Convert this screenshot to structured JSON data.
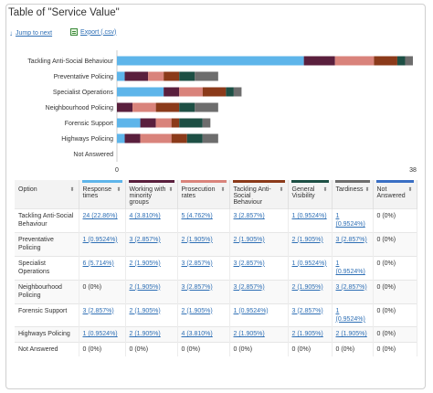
{
  "title": "Table of \"Service Value\"",
  "toolbar": {
    "jump_label": "Jump to next",
    "export_label": "Export (.csv)"
  },
  "colors": {
    "response_times": "#5eb5ea",
    "working_with_minority_groups": "#5a1f3d",
    "prosecution_rates": "#d9837b",
    "tackling_asb": "#8b3a1a",
    "general_visibility": "#1d4f44",
    "tardiness": "#6d6d6d",
    "not_answered": "#3a6fc4"
  },
  "chart_data": {
    "type": "bar",
    "orientation": "horizontal",
    "stacked": true,
    "categories": [
      "Tackling Anti-Social Behaviour",
      "Preventative Policing",
      "Specialist Operations",
      "Neighbourhood Policing",
      "Forensic Support",
      "Highways Policing",
      "Not Answered"
    ],
    "series": [
      {
        "name": "Response times",
        "values": [
          24,
          1,
          6,
          0,
          3,
          1,
          0
        ]
      },
      {
        "name": "Working with minority groups",
        "values": [
          4,
          3,
          2,
          2,
          2,
          2,
          0
        ]
      },
      {
        "name": "Prosecution rates",
        "values": [
          5,
          2,
          3,
          3,
          2,
          4,
          0
        ]
      },
      {
        "name": "Tackling Anti-Social Behaviour",
        "values": [
          3,
          2,
          3,
          3,
          1,
          2,
          0
        ]
      },
      {
        "name": "General Visibility",
        "values": [
          1,
          2,
          1,
          2,
          3,
          2,
          0
        ]
      },
      {
        "name": "Tardiness",
        "values": [
          1,
          3,
          1,
          3,
          1,
          2,
          0
        ]
      },
      {
        "name": "Not Answered",
        "values": [
          0,
          0,
          0,
          0,
          0,
          0,
          0
        ]
      }
    ],
    "xlim": [
      0,
      38
    ],
    "x_ticks": [
      "0",
      "38"
    ]
  },
  "table": {
    "option_header": "Option",
    "columns": [
      "Response times",
      "Working with minority groups",
      "Prosecution rates",
      "Tackling Anti-Social Behaviour",
      "General Visibility",
      "Tardiness",
      "Not Answered"
    ],
    "rows": [
      {
        "option": "Tackling Anti-Social Behaviour",
        "cells": [
          "24 (22.86%)",
          "4 (3.810%)",
          "5 (4.762%)",
          "3 (2.857%)",
          "1 (0.9524%)",
          "1 (0.9524%)",
          "0 (0%)"
        ]
      },
      {
        "option": "Preventative Policing",
        "cells": [
          "1 (0.9524%)",
          "3 (2.857%)",
          "2 (1.905%)",
          "2 (1.905%)",
          "2 (1.905%)",
          "3 (2.857%)",
          "0 (0%)"
        ]
      },
      {
        "option": "Specialist Operations",
        "cells": [
          "6 (5.714%)",
          "2 (1.905%)",
          "3 (2.857%)",
          "3 (2.857%)",
          "1 (0.9524%)",
          "1 (0.9524%)",
          "0 (0%)"
        ]
      },
      {
        "option": "Neighbourhood Policing",
        "cells": [
          "0 (0%)",
          "2 (1.905%)",
          "3 (2.857%)",
          "3 (2.857%)",
          "2 (1.905%)",
          "3 (2.857%)",
          "0 (0%)"
        ]
      },
      {
        "option": "Forensic Support",
        "cells": [
          "3 (2.857%)",
          "2 (1.905%)",
          "2 (1.905%)",
          "1 (0.9524%)",
          "3 (2.857%)",
          "1 (0.9524%)",
          "0 (0%)"
        ]
      },
      {
        "option": "Highways Policing",
        "cells": [
          "1 (0.9524%)",
          "2 (1.905%)",
          "4 (3.810%)",
          "2 (1.905%)",
          "2 (1.905%)",
          "2 (1.905%)",
          "0 (0%)"
        ]
      },
      {
        "option": "Not Answered",
        "cells": [
          "0 (0%)",
          "0 (0%)",
          "0 (0%)",
          "0 (0%)",
          "0 (0%)",
          "0 (0%)",
          "0 (0%)"
        ]
      }
    ]
  }
}
